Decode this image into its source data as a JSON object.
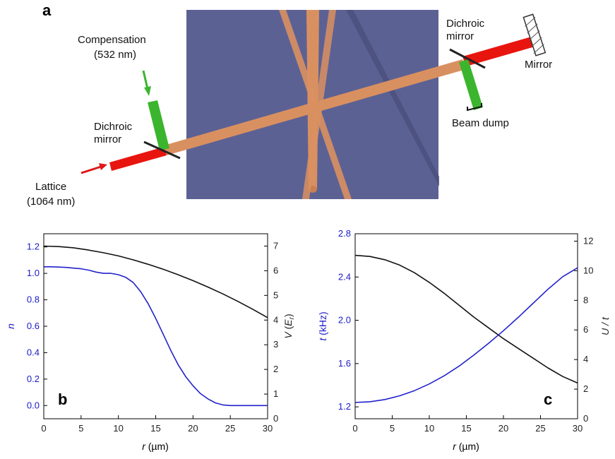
{
  "panels": {
    "a": "a",
    "b": "b",
    "c": "c"
  },
  "schematic": {
    "labels": {
      "compensation": "Compensation",
      "compensation_wl": "(532 nm)",
      "dichroic_left_1": "Dichroic",
      "dichroic_left_2": "mirror",
      "lattice": "Lattice",
      "lattice_wl": "(1064 nm)",
      "dichroic_right_1": "Dichroic",
      "dichroic_right_2": "mirror",
      "mirror": "Mirror",
      "beam_dump": "Beam dump"
    },
    "colors": {
      "background": "#5c6194",
      "lattice_beam": "#e8150f",
      "compensation_beam": "#3cb52e",
      "combined_beam": "#d99060",
      "arrow_red": "#e01818",
      "arrow_green": "#3cb52e"
    }
  },
  "chart_data": [
    {
      "type": "line",
      "panel": "b",
      "xlabel": "r (µm)",
      "ylabel_left": "n",
      "ylabel_right": "V (Er)",
      "xlim": [
        0,
        30
      ],
      "ylim_left": [
        -0.1,
        1.3
      ],
      "ylim_right": [
        0,
        7.5
      ],
      "xticks": [
        0,
        5,
        10,
        15,
        20,
        25,
        30
      ],
      "yticks_left": [
        0.0,
        0.2,
        0.4,
        0.6,
        0.8,
        1.0,
        1.2
      ],
      "yticks_right": [
        0,
        1,
        2,
        3,
        4,
        5,
        6,
        7
      ],
      "series": [
        {
          "axis": "left",
          "color": "#2222cc",
          "x": [
            0,
            1,
            2,
            3,
            4,
            5,
            6,
            7,
            8,
            9,
            10,
            11,
            12,
            13,
            14,
            15,
            16,
            17,
            18,
            19,
            20,
            21,
            22,
            23,
            24,
            25,
            26,
            27,
            28,
            29,
            30
          ],
          "y": [
            1.05,
            1.05,
            1.048,
            1.045,
            1.04,
            1.035,
            1.025,
            1.01,
            1.0,
            1.0,
            0.99,
            0.97,
            0.93,
            0.86,
            0.77,
            0.66,
            0.54,
            0.42,
            0.31,
            0.22,
            0.15,
            0.09,
            0.05,
            0.02,
            0.005,
            0.0,
            0.0,
            0.0,
            0.0,
            0.0,
            0.0
          ]
        },
        {
          "axis": "right",
          "color": "#111111",
          "x": [
            0,
            2,
            4,
            6,
            8,
            10,
            12,
            14,
            16,
            18,
            20,
            22,
            24,
            26,
            28,
            30
          ],
          "y": [
            7.0,
            6.98,
            6.93,
            6.84,
            6.73,
            6.6,
            6.44,
            6.26,
            6.06,
            5.84,
            5.6,
            5.34,
            5.06,
            4.76,
            4.44,
            4.1
          ]
        }
      ]
    },
    {
      "type": "line",
      "panel": "c",
      "xlabel": "r (µm)",
      "ylabel_left": "t (kHz)",
      "ylabel_right": "U / t",
      "xlim": [
        0,
        30
      ],
      "ylim_left": [
        1.09,
        2.8
      ],
      "ylim_right": [
        0,
        12.5
      ],
      "xticks": [
        0,
        5,
        10,
        15,
        20,
        25,
        30
      ],
      "yticks_left": [
        1.2,
        1.6,
        2.0,
        2.4,
        2.8
      ],
      "yticks_right": [
        0,
        2,
        4,
        6,
        8,
        10,
        12
      ],
      "series": [
        {
          "axis": "left",
          "color": "#111111",
          "x": [
            0,
            2,
            4,
            6,
            8,
            10,
            12,
            14,
            16,
            18,
            20,
            22,
            24,
            26,
            28,
            30
          ],
          "y": [
            2.6,
            2.59,
            2.56,
            2.51,
            2.44,
            2.35,
            2.25,
            2.14,
            2.03,
            1.93,
            1.83,
            1.74,
            1.65,
            1.56,
            1.48,
            1.42
          ]
        },
        {
          "axis": "right",
          "color": "#2222cc",
          "x": [
            0,
            2,
            4,
            6,
            8,
            10,
            12,
            14,
            16,
            18,
            20,
            22,
            24,
            26,
            28,
            30
          ],
          "y": [
            1.1,
            1.15,
            1.3,
            1.55,
            1.9,
            2.35,
            2.9,
            3.55,
            4.3,
            5.1,
            5.95,
            6.85,
            7.8,
            8.75,
            9.6,
            10.2
          ]
        }
      ]
    }
  ]
}
